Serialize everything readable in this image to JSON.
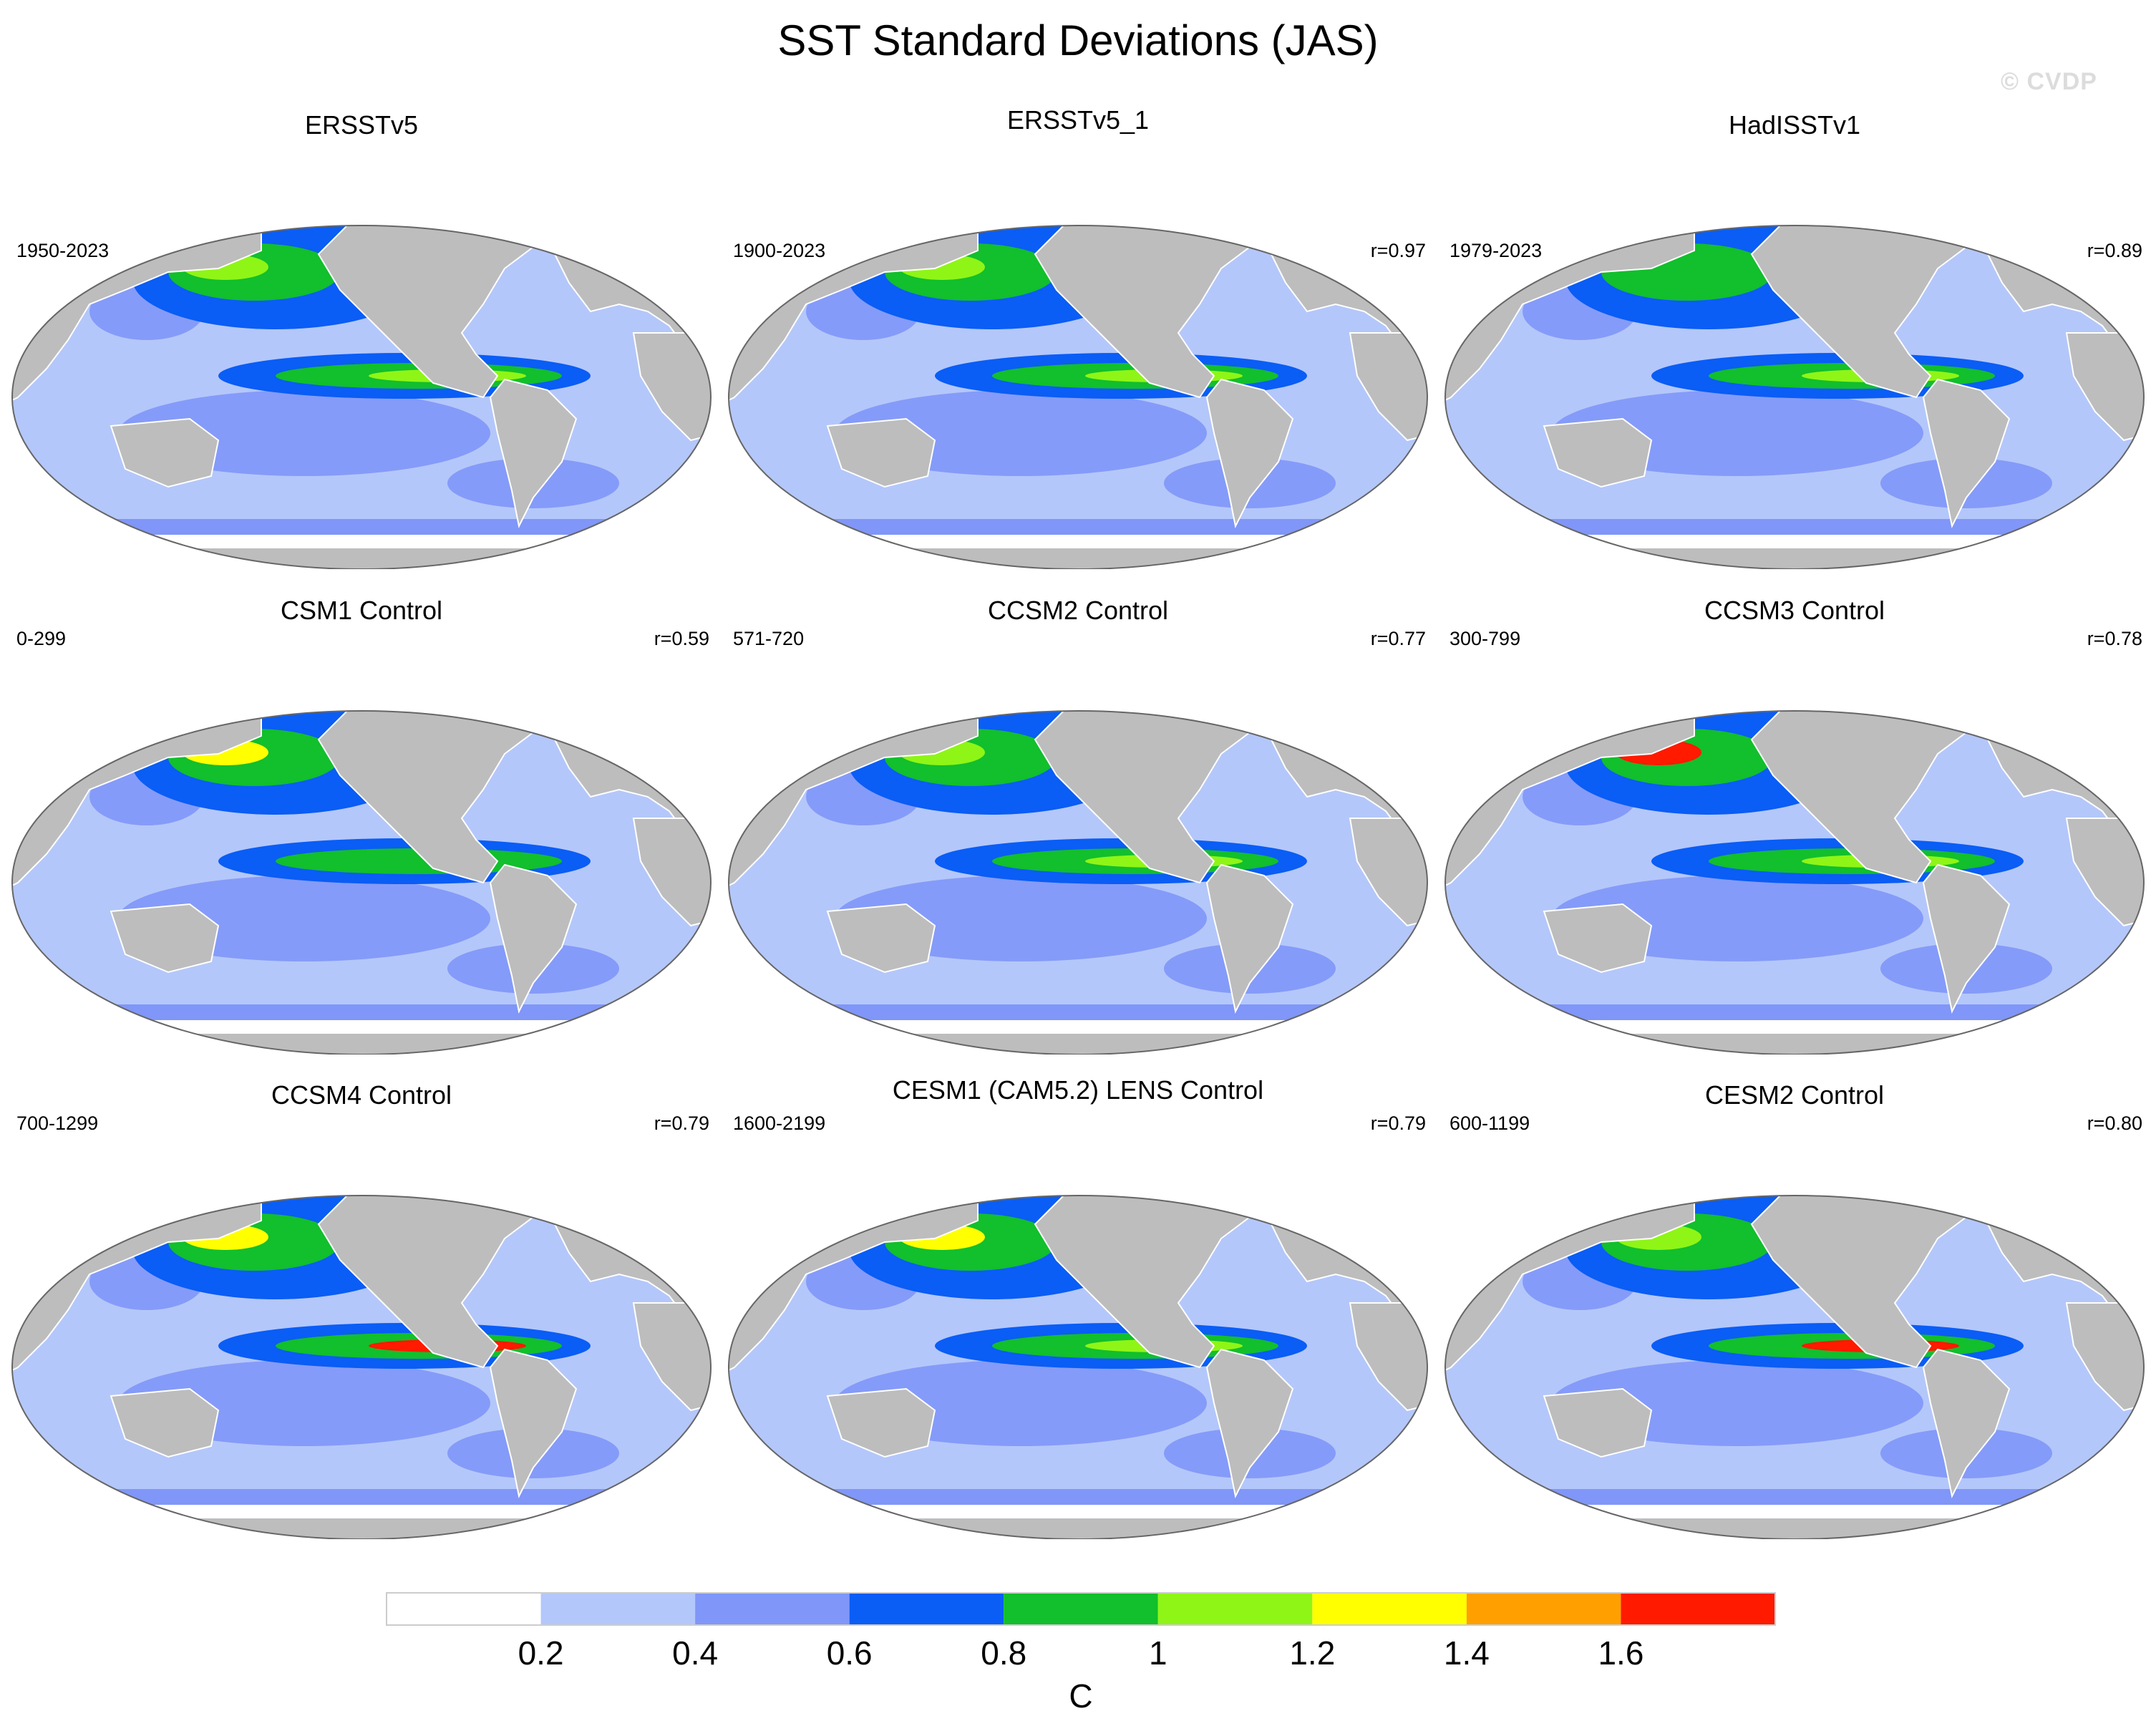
{
  "title": "SST Standard Deviations (JAS)",
  "watermark": "© CVDP",
  "colors": {
    "land": "#bdbdbd",
    "ocean_background": "#b4c7fa",
    "levels": [
      "#ffffff",
      "#b4c7fa",
      "#8096f8",
      "#0a5df5",
      "#12bf2c",
      "#8ff516",
      "#ffff00",
      "#ffa000",
      "#ff1a00"
    ]
  },
  "panels": [
    {
      "title": "ERSSTv5",
      "period": "1950-2023",
      "corr": ""
    },
    {
      "title": "ERSSTv5_1",
      "period": "1900-2023",
      "corr": "r=0.97"
    },
    {
      "title": "HadISSTv1",
      "period": "1979-2023",
      "corr": "r=0.89"
    },
    {
      "title": "CSM1 Control",
      "period": "0-299",
      "corr": "r=0.59"
    },
    {
      "title": "CCSM2 Control",
      "period": "571-720",
      "corr": "r=0.77"
    },
    {
      "title": "CCSM3 Control",
      "period": "300-799",
      "corr": "r=0.78"
    },
    {
      "title": "CCSM4 Control",
      "period": "700-1299",
      "corr": "r=0.79"
    },
    {
      "title": "CESM1 (CAM5.2) LENS Control",
      "period": "1600-2199",
      "corr": "r=0.79"
    },
    {
      "title": "CESM2 Control",
      "period": "600-1199",
      "corr": "r=0.80"
    }
  ],
  "chart_data": {
    "type": "heatmap",
    "title": "SST Standard Deviations (JAS)",
    "projection": "Robinson (Pacific-centered)",
    "variable": "SST standard deviation",
    "units": "C",
    "colorbar": {
      "label": "C",
      "levels": [
        0.2,
        0.4,
        0.6,
        0.8,
        1.0,
        1.2,
        1.4,
        1.6
      ],
      "tick_labels": [
        "0.2",
        "0.4",
        "0.6",
        "0.8",
        "1",
        "1.2",
        "1.4",
        "1.6"
      ],
      "range": [
        0,
        1.8
      ]
    },
    "panels": [
      {
        "name": "ERSSTv5",
        "years": "1950-2023",
        "pattern_correlation": null,
        "eq_pacific_peak": 1.2,
        "north_pacific_peak": 1.0,
        "tropical_background": 0.3
      },
      {
        "name": "ERSSTv5_1",
        "years": "1900-2023",
        "pattern_correlation": 0.97,
        "eq_pacific_peak": 1.2,
        "north_pacific_peak": 1.0,
        "tropical_background": 0.3
      },
      {
        "name": "HadISSTv1",
        "years": "1979-2023",
        "pattern_correlation": 0.89,
        "eq_pacific_peak": 1.2,
        "north_pacific_peak": 0.9,
        "tropical_background": 0.3
      },
      {
        "name": "CSM1 Control",
        "years": "0-299",
        "pattern_correlation": 0.59,
        "eq_pacific_peak": 0.8,
        "north_pacific_peak": 1.4,
        "tropical_background": 0.3
      },
      {
        "name": "CCSM2 Control",
        "years": "571-720",
        "pattern_correlation": 0.77,
        "eq_pacific_peak": 1.2,
        "north_pacific_peak": 1.0,
        "tropical_background": 0.3
      },
      {
        "name": "CCSM3 Control",
        "years": "300-799",
        "pattern_correlation": 0.78,
        "eq_pacific_peak": 1.2,
        "north_pacific_peak": 1.6,
        "tropical_background": 0.3
      },
      {
        "name": "CCSM4 Control",
        "years": "700-1299",
        "pattern_correlation": 0.79,
        "eq_pacific_peak": 1.6,
        "north_pacific_peak": 1.4,
        "tropical_background": 0.3
      },
      {
        "name": "CESM1 (CAM5.2) LENS Control",
        "years": "1600-2199",
        "pattern_correlation": 0.79,
        "eq_pacific_peak": 1.2,
        "north_pacific_peak": 1.4,
        "tropical_background": 0.3
      },
      {
        "name": "CESM2 Control",
        "years": "600-1199",
        "pattern_correlation": 0.8,
        "eq_pacific_peak": 1.6,
        "north_pacific_peak": 1.2,
        "tropical_background": 0.3
      }
    ]
  }
}
